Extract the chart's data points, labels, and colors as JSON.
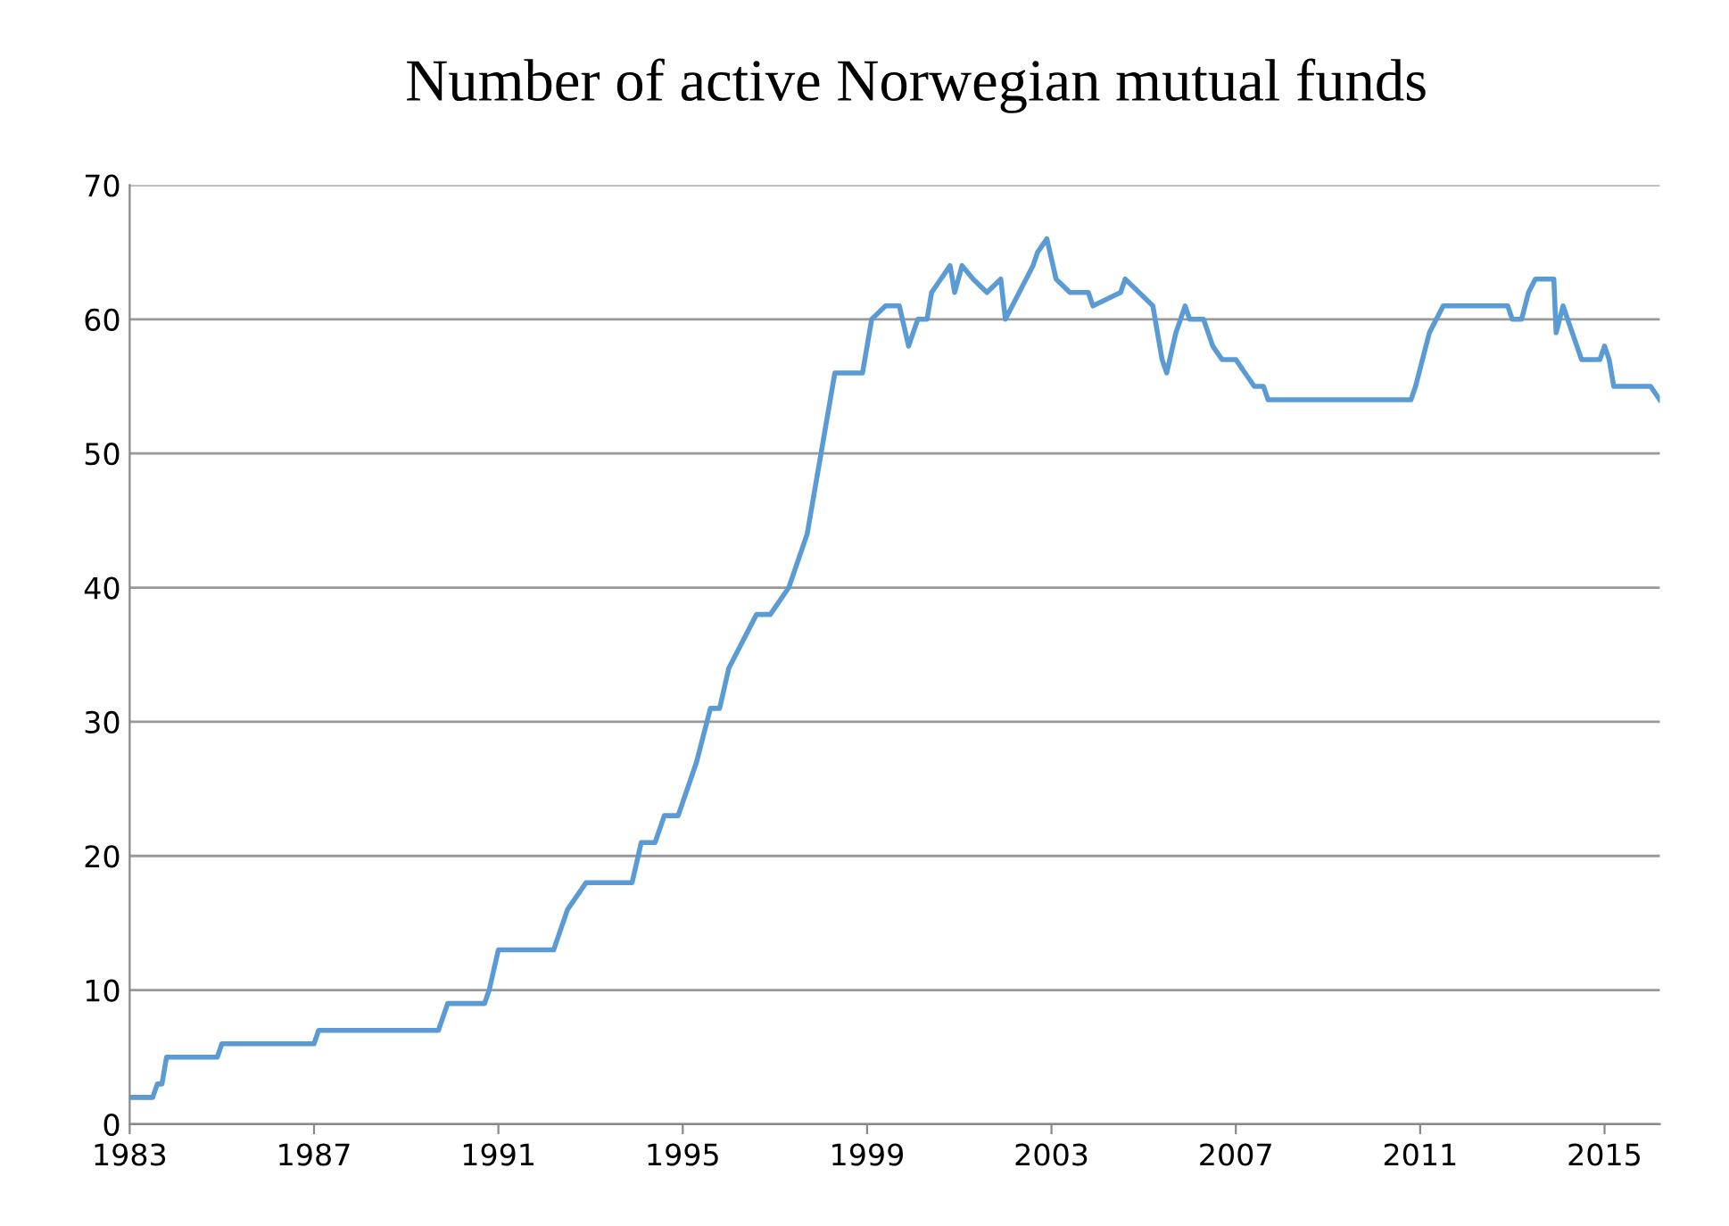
{
  "chart_data": {
    "type": "line",
    "title": "Number of active Norwegian mutual funds",
    "x": [
      1983.0,
      1983.5,
      1983.6,
      1983.7,
      1983.8,
      1984.9,
      1985.0,
      1987.0,
      1987.1,
      1989.7,
      1989.8,
      1989.9,
      1990.7,
      1990.8,
      1991.0,
      1992.2,
      1992.3,
      1992.5,
      1992.7,
      1992.9,
      1993.2,
      1993.9,
      1994.1,
      1994.4,
      1994.6,
      1994.9,
      1995.1,
      1995.3,
      1995.6,
      1995.8,
      1996.0,
      1996.3,
      1996.6,
      1996.9,
      1997.1,
      1997.3,
      1997.7,
      1998.0,
      1998.3,
      1998.9,
      1999.1,
      1999.4,
      1999.7,
      1999.9,
      2000.1,
      2000.3,
      2000.4,
      2000.6,
      2000.8,
      2000.9,
      2001.06,
      2001.3,
      2001.6,
      2001.9,
      2002.0,
      2002.3,
      2002.6,
      2002.7,
      2002.9,
      2003.1,
      2003.4,
      2003.8,
      2003.9,
      2004.5,
      2004.6,
      2004.9,
      2005.2,
      2005.4,
      2005.5,
      2005.7,
      2005.9,
      2006.0,
      2006.3,
      2006.5,
      2006.7,
      2007.0,
      2007.2,
      2007.4,
      2007.6,
      2007.7,
      2010.8,
      2010.9,
      2011.2,
      2011.5,
      2012.9,
      2013.0,
      2013.2,
      2013.35,
      2013.5,
      2013.9,
      2013.95,
      2014.1,
      2014.2,
      2014.5,
      2014.9,
      2015.0,
      2015.1,
      2015.2,
      2016.0,
      2016.2
    ],
    "values": [
      2,
      2,
      3,
      3,
      5,
      5,
      6,
      6,
      7,
      7,
      8,
      9,
      9,
      10,
      13,
      13,
      14,
      16,
      17,
      18,
      18,
      18,
      21,
      21,
      23,
      23,
      25,
      27,
      31,
      31,
      34,
      36,
      38,
      38,
      39,
      40,
      44,
      50,
      56,
      56,
      60,
      61,
      61,
      58,
      60,
      60,
      62,
      63,
      64,
      62,
      64,
      63,
      62,
      63,
      60,
      62,
      64,
      65,
      66,
      63,
      62,
      62,
      61,
      62,
      63,
      62,
      61,
      57,
      56,
      59,
      61,
      60,
      60,
      58,
      57,
      57,
      56,
      55,
      55,
      54,
      54,
      55,
      59,
      61,
      61,
      60,
      60,
      62,
      63,
      63,
      59,
      61,
      60,
      57,
      57,
      58,
      57,
      55,
      55,
      54
    ],
    "color": "#5b9bd5",
    "xlim": [
      1983,
      2016.2
    ],
    "xticks": [
      1983,
      1987,
      1991,
      1995,
      1999,
      2003,
      2007,
      2011,
      2015
    ],
    "ylim": [
      0,
      70
    ],
    "yticks": [
      0,
      10,
      20,
      30,
      40,
      50,
      60,
      70
    ],
    "grid": "y"
  }
}
